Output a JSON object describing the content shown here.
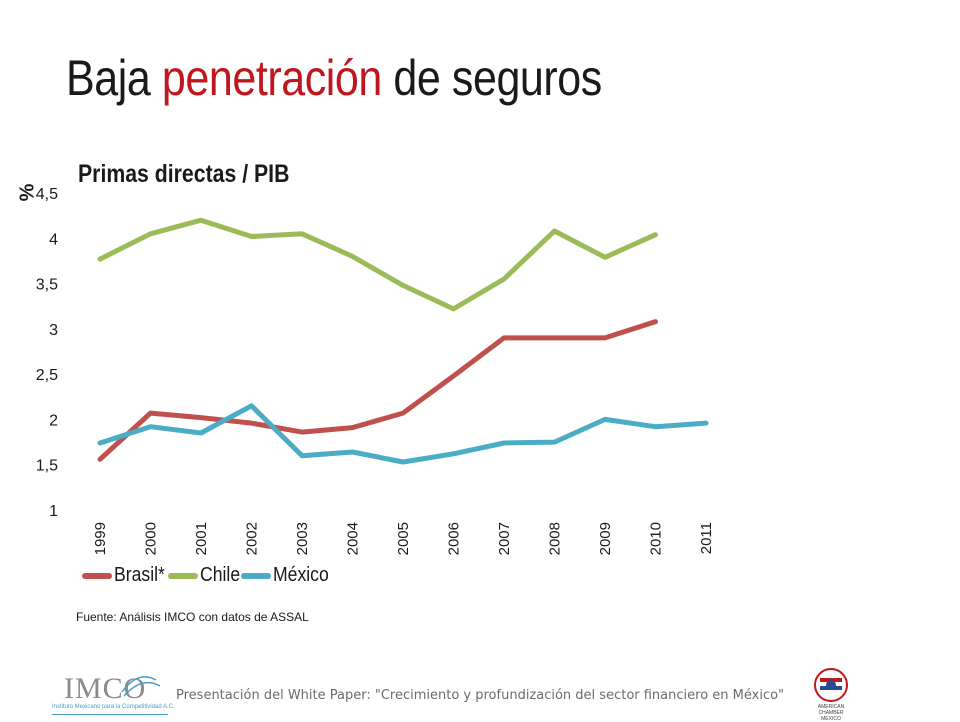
{
  "slide": {
    "title_part1": "Baja",
    "title_accent": "penetración",
    "title_part2": "de seguros",
    "source": "Fuente: Análisis IMCO con datos de ASSAL",
    "footer": "Presentación del White Paper: \"Crecimiento y profundización del sector financiero en México\"",
    "logo_left_text": "IMCO",
    "logo_left_subtext": "Instituto Mexicano para la Competitividad A.C.",
    "logo_right_text": "AMERICAN CHAMBER MEXICO"
  },
  "chart_data": {
    "type": "line",
    "title": "Primas directas / PIB",
    "ylabel": "%",
    "xlabel": "",
    "categories": [
      "1999",
      "2000",
      "2001",
      "2002",
      "2003",
      "2004",
      "2005",
      "2006",
      "2007",
      "2008",
      "2009",
      "2010",
      "2011"
    ],
    "ylim": [
      1,
      4.5
    ],
    "yticks": [
      "1",
      "1,5",
      "2",
      "2,5",
      "3",
      "3,5",
      "4",
      "4,5"
    ],
    "ytick_values": [
      1,
      1.5,
      2,
      2.5,
      3,
      3.5,
      4,
      4.5
    ],
    "grid": false,
    "legend_position": "bottom-left",
    "series": [
      {
        "name": "Brasil*",
        "color": "#c0504d",
        "values": [
          1.56,
          2.07,
          2.02,
          1.96,
          1.86,
          1.91,
          2.07,
          2.48,
          2.9,
          2.9,
          2.9,
          3.08,
          null
        ]
      },
      {
        "name": "Chile",
        "color": "#9bbb59",
        "values": [
          3.77,
          4.05,
          4.2,
          4.02,
          4.05,
          3.8,
          3.48,
          3.22,
          3.55,
          4.08,
          3.79,
          4.04,
          null
        ]
      },
      {
        "name": "México",
        "color": "#4bacc6",
        "values": [
          1.74,
          1.92,
          1.85,
          2.15,
          1.6,
          1.64,
          1.53,
          1.62,
          1.74,
          1.75,
          2.0,
          1.92,
          1.96
        ]
      }
    ]
  }
}
